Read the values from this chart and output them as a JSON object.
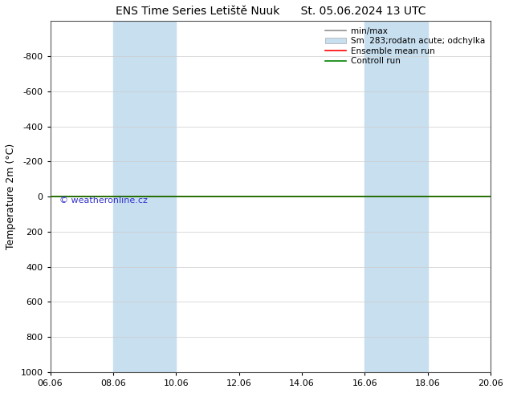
{
  "title_left": "ENS Time Series Letiště Nuuk",
  "title_right": "St. 05.06.2024 13 UTC",
  "ylabel": "Temperature 2m (°C)",
  "xlim_dates": [
    "06.06",
    "08.06",
    "10.06",
    "12.06",
    "14.06",
    "16.06",
    "18.06",
    "20.06"
  ],
  "ylim_top": -1000,
  "ylim_bottom": 1000,
  "yticks": [
    -800,
    -600,
    -400,
    -200,
    0,
    200,
    400,
    600,
    800,
    1000
  ],
  "x_numeric": [
    0,
    2,
    4,
    6,
    8,
    10,
    12,
    14
  ],
  "shaded_bands": [
    {
      "xmin": 2,
      "xmax": 4,
      "color": "#c8dff0"
    },
    {
      "xmin": 10,
      "xmax": 12,
      "color": "#c8dff0"
    }
  ],
  "ensemble_mean_y": 0.0,
  "control_run_y": 0.0,
  "ensemble_mean_color": "#ff0000",
  "control_run_color": "#008000",
  "minmax_color": "#909090",
  "std_color": "#c8dff0",
  "watermark": "© weatheronline.cz",
  "watermark_color": "#3333cc",
  "legend_labels": [
    "min/max",
    "Sm  283;rodatn acute; odchylka",
    "Ensemble mean run",
    "Controll run"
  ],
  "legend_line_colors": [
    "#909090",
    null,
    "#ff0000",
    "#008000"
  ],
  "legend_patch_color": "#c8dff0",
  "background_color": "#ffffff",
  "plot_bg_color": "#ffffff",
  "tick_fontsize": 8,
  "ylabel_fontsize": 9,
  "title_fontsize": 10,
  "legend_fontsize": 7.5
}
